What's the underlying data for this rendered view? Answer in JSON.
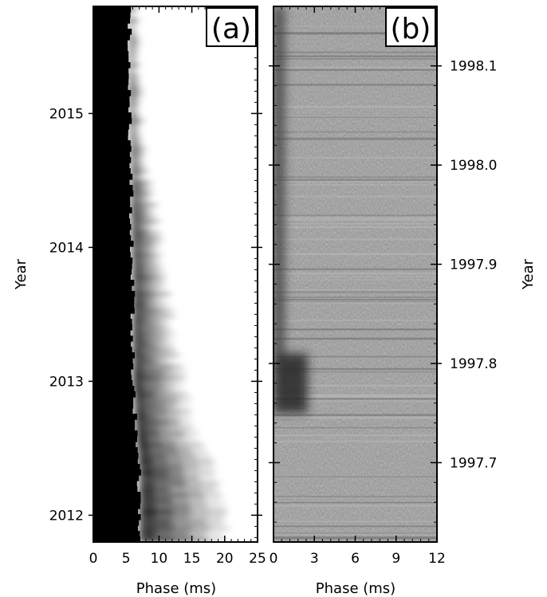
{
  "chart_data": [
    {
      "type": "heatmap",
      "panel_label": "(a)",
      "xlabel": "Phase (ms)",
      "ylabel": "Year",
      "xlim": [
        0,
        25
      ],
      "ylim": [
        2011.8,
        2015.8
      ],
      "x_ticks": [
        0,
        5,
        10,
        15,
        20,
        25
      ],
      "x_tick_labels": [
        "0",
        "5",
        "10",
        "15",
        "20",
        "25"
      ],
      "y_ticks": [
        2012,
        2013,
        2014,
        2015
      ],
      "y_tick_labels": [
        "2012",
        "2013",
        "2014",
        "2015"
      ],
      "colormap": "greyscale, black = high intensity",
      "profile_edge": [
        {
          "year": 2012.0,
          "core_end": 7.0,
          "tail_end": 20.0
        },
        {
          "year": 2012.3,
          "core_end": 7.0,
          "tail_end": 18.5
        },
        {
          "year": 2012.6,
          "core_end": 6.5,
          "tail_end": 16.0
        },
        {
          "year": 2013.0,
          "core_end": 6.0,
          "tail_end": 13.5
        },
        {
          "year": 2013.4,
          "core_end": 6.0,
          "tail_end": 12.0
        },
        {
          "year": 2013.8,
          "core_end": 6.0,
          "tail_end": 11.0
        },
        {
          "year": 2014.2,
          "core_end": 5.8,
          "tail_end": 9.5
        },
        {
          "year": 2014.6,
          "core_end": 5.8,
          "tail_end": 8.0
        },
        {
          "year": 2015.0,
          "core_end": 5.5,
          "tail_end": 7.2
        },
        {
          "year": 2015.4,
          "core_end": 5.5,
          "tail_end": 6.8
        },
        {
          "year": 2015.8,
          "core_end": 5.5,
          "tail_end": 6.5
        }
      ]
    },
    {
      "type": "heatmap",
      "panel_label": "(b)",
      "xlabel": "Phase (ms)",
      "ylabel": "Year",
      "xlim": [
        0,
        12
      ],
      "ylim": [
        1997.62,
        1998.16
      ],
      "x_ticks": [
        0,
        3,
        6,
        9,
        12
      ],
      "x_tick_labels": [
        "0",
        "3",
        "6",
        "9",
        "12"
      ],
      "y_ticks": [
        1997.7,
        1997.8,
        1997.9,
        1998.0,
        1998.1
      ],
      "y_tick_labels": [
        "1997.7",
        "1997.8",
        "1997.9",
        "1998.0",
        "1998.1"
      ],
      "colormap": "greyscale, noisy background",
      "features": [
        {
          "year_start": 1997.75,
          "year_end": 1997.81,
          "phase_start": 0.0,
          "phase_end": 2.5,
          "intensity": 0.85
        },
        {
          "year_start": 1997.81,
          "year_end": 1998.16,
          "phase_start": 0.0,
          "phase_end": 0.8,
          "intensity": 0.75
        }
      ]
    }
  ]
}
